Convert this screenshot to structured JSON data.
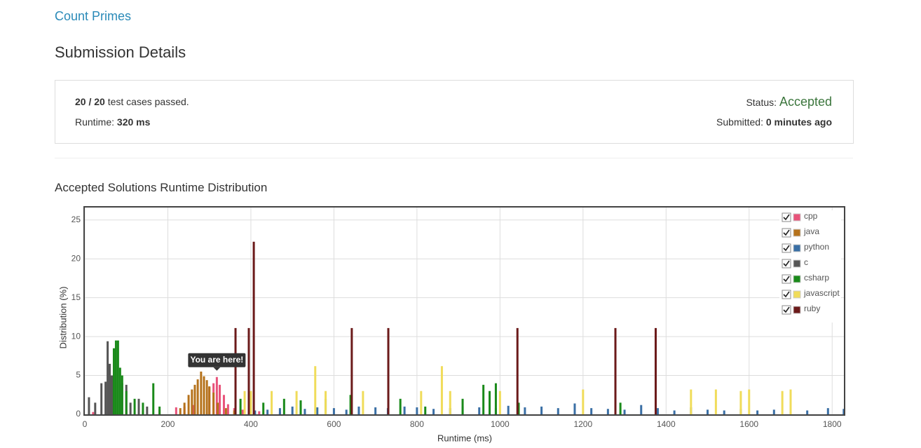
{
  "problem_title": "Count Primes",
  "heading": "Submission Details",
  "summary": {
    "passed": "20 / 20",
    "passed_text": "test cases passed.",
    "runtime_label": "Runtime:",
    "runtime": "320 ms",
    "status_label": "Status:",
    "status": "Accepted",
    "submitted_label": "Submitted:",
    "submitted": "0 minutes ago"
  },
  "chart_data": {
    "type": "bar",
    "title": "Accepted Solutions Runtime Distribution",
    "x_label": "Runtime (ms)",
    "y_label": "Distribution (%)",
    "xlim": [
      0,
      1830
    ],
    "ylim": [
      0,
      26.6
    ],
    "xticks": [
      0,
      200,
      400,
      600,
      800,
      1000,
      1200,
      1400,
      1600,
      1800
    ],
    "yticks": [
      0,
      5,
      10,
      15,
      20,
      25
    ],
    "grid": true,
    "legend": "top-right",
    "annotation": {
      "text": "You are here!",
      "x": 318,
      "y": 4.8
    },
    "series": [
      {
        "name": "cpp",
        "color": "#e8537a",
        "x": [
          20,
          60,
          100,
          140,
          180,
          220,
          240,
          260,
          300,
          310,
          318,
          325,
          335,
          345,
          360,
          380,
          420,
          470
        ],
        "values": [
          0.3,
          0.5,
          0.6,
          0.5,
          0.6,
          0.9,
          1.0,
          1.2,
          3.5,
          4.0,
          4.8,
          3.8,
          2.5,
          1.3,
          0.8,
          0.6,
          0.4,
          0.3
        ]
      },
      {
        "name": "java",
        "color": "#b5721b",
        "x": [
          230,
          240,
          250,
          258,
          265,
          272,
          280,
          287,
          294,
          300,
          310,
          320,
          340,
          360
        ],
        "values": [
          0.8,
          1.5,
          2.5,
          3.2,
          3.8,
          4.5,
          5.5,
          4.9,
          4.4,
          3.6,
          2.8,
          1.5,
          0.8,
          0.5
        ]
      },
      {
        "name": "python",
        "color": "#3a6fa5",
        "x": [
          410,
          440,
          470,
          500,
          530,
          560,
          600,
          630,
          660,
          700,
          730,
          770,
          800,
          840,
          880,
          910,
          950,
          990,
          1020,
          1060,
          1100,
          1140,
          1180,
          1220,
          1260,
          1300,
          1340,
          1380,
          1420,
          1460,
          1500,
          1540,
          1580,
          1620,
          1660,
          1700,
          1740,
          1790,
          1828
        ],
        "values": [
          0.5,
          0.6,
          0.8,
          1.0,
          0.7,
          0.9,
          0.8,
          0.6,
          1.0,
          0.9,
          0.8,
          1.0,
          0.9,
          0.7,
          0.8,
          1.0,
          0.9,
          0.8,
          1.1,
          0.9,
          1.0,
          0.8,
          1.4,
          0.8,
          0.7,
          0.6,
          1.2,
          0.8,
          0.5,
          0.9,
          0.6,
          0.5,
          0.7,
          0.5,
          0.6,
          0.4,
          0.5,
          0.8,
          0.7
        ]
      },
      {
        "name": "c",
        "color": "#555555",
        "x": [
          10,
          25,
          40,
          50,
          55,
          60,
          65,
          90,
          100,
          110,
          130,
          150
        ],
        "values": [
          2.2,
          1.5,
          4.0,
          4.2,
          9.4,
          6.5,
          5.0,
          4.0,
          3.8,
          1.5,
          2.0,
          1.0
        ]
      },
      {
        "name": "csharp",
        "color": "#1a8a1a",
        "x": [
          70,
          75,
          80,
          85,
          90,
          100,
          120,
          140,
          165,
          180,
          375,
          430,
          480,
          520,
          580,
          640,
          760,
          820,
          910,
          960,
          975,
          990,
          1045,
          1290
        ],
        "values": [
          8.5,
          9.5,
          9.5,
          6.0,
          5.0,
          3.0,
          2.0,
          1.5,
          4.0,
          1.0,
          2.0,
          1.5,
          2.0,
          1.8,
          2.0,
          2.5,
          2.0,
          1.0,
          2.0,
          3.8,
          3.0,
          4.0,
          1.5,
          1.5
        ]
      },
      {
        "name": "javascript",
        "color": "#f0dc5a",
        "x": [
          385,
          400,
          450,
          510,
          555,
          580,
          670,
          810,
          860,
          880,
          1000,
          1200,
          1460,
          1520,
          1580,
          1600,
          1680,
          1700
        ],
        "values": [
          3.0,
          3.0,
          3.0,
          3.0,
          6.2,
          3.0,
          3.0,
          3.0,
          6.2,
          3.0,
          3.0,
          3.2,
          3.2,
          3.2,
          3.0,
          3.2,
          3.0,
          3.2
        ]
      },
      {
        "name": "ruby",
        "color": "#6b1a1a",
        "x": [
          363,
          395,
          407,
          643,
          731,
          1042,
          1278,
          1375
        ],
        "values": [
          11.1,
          11.1,
          22.2,
          11.1,
          11.1,
          11.1,
          11.1,
          11.1
        ]
      }
    ]
  }
}
